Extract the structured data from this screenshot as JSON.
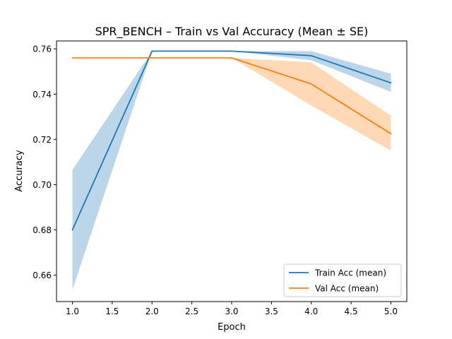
{
  "chart_data": {
    "type": "line",
    "title": "SPR_BENCH – Train vs Val Accuracy (Mean ± SE)",
    "xlabel": "Epoch",
    "ylabel": "Accuracy",
    "xlim": [
      0.8,
      5.2
    ],
    "ylim": [
      0.6483,
      0.7635
    ],
    "x": [
      1,
      2,
      3,
      4,
      5
    ],
    "xticks": [
      "1.0",
      "1.5",
      "2.0",
      "2.5",
      "3.0",
      "3.5",
      "4.0",
      "4.5",
      "5.0"
    ],
    "yticks": [
      "0.66",
      "0.68",
      "0.70",
      "0.72",
      "0.74",
      "0.76"
    ],
    "grid": false,
    "legend_position": "lower-right",
    "series": [
      {
        "name": "Train Acc (mean)",
        "color": "#1f77b4",
        "band_color": "#1f77b4",
        "values": [
          0.68,
          0.759,
          0.759,
          0.757,
          0.745
        ],
        "lower": [
          0.6535,
          0.759,
          0.759,
          0.755,
          0.741
        ],
        "upper": [
          0.7065,
          0.759,
          0.759,
          0.759,
          0.749
        ]
      },
      {
        "name": "Val Acc (mean)",
        "color": "#ff7f0e",
        "band_color": "#ff7f0e",
        "values": [
          0.756,
          0.756,
          0.756,
          0.7445,
          0.7225
        ],
        "lower": [
          0.756,
          0.756,
          0.756,
          0.735,
          0.715
        ],
        "upper": [
          0.756,
          0.756,
          0.756,
          0.754,
          0.7305
        ]
      }
    ]
  }
}
